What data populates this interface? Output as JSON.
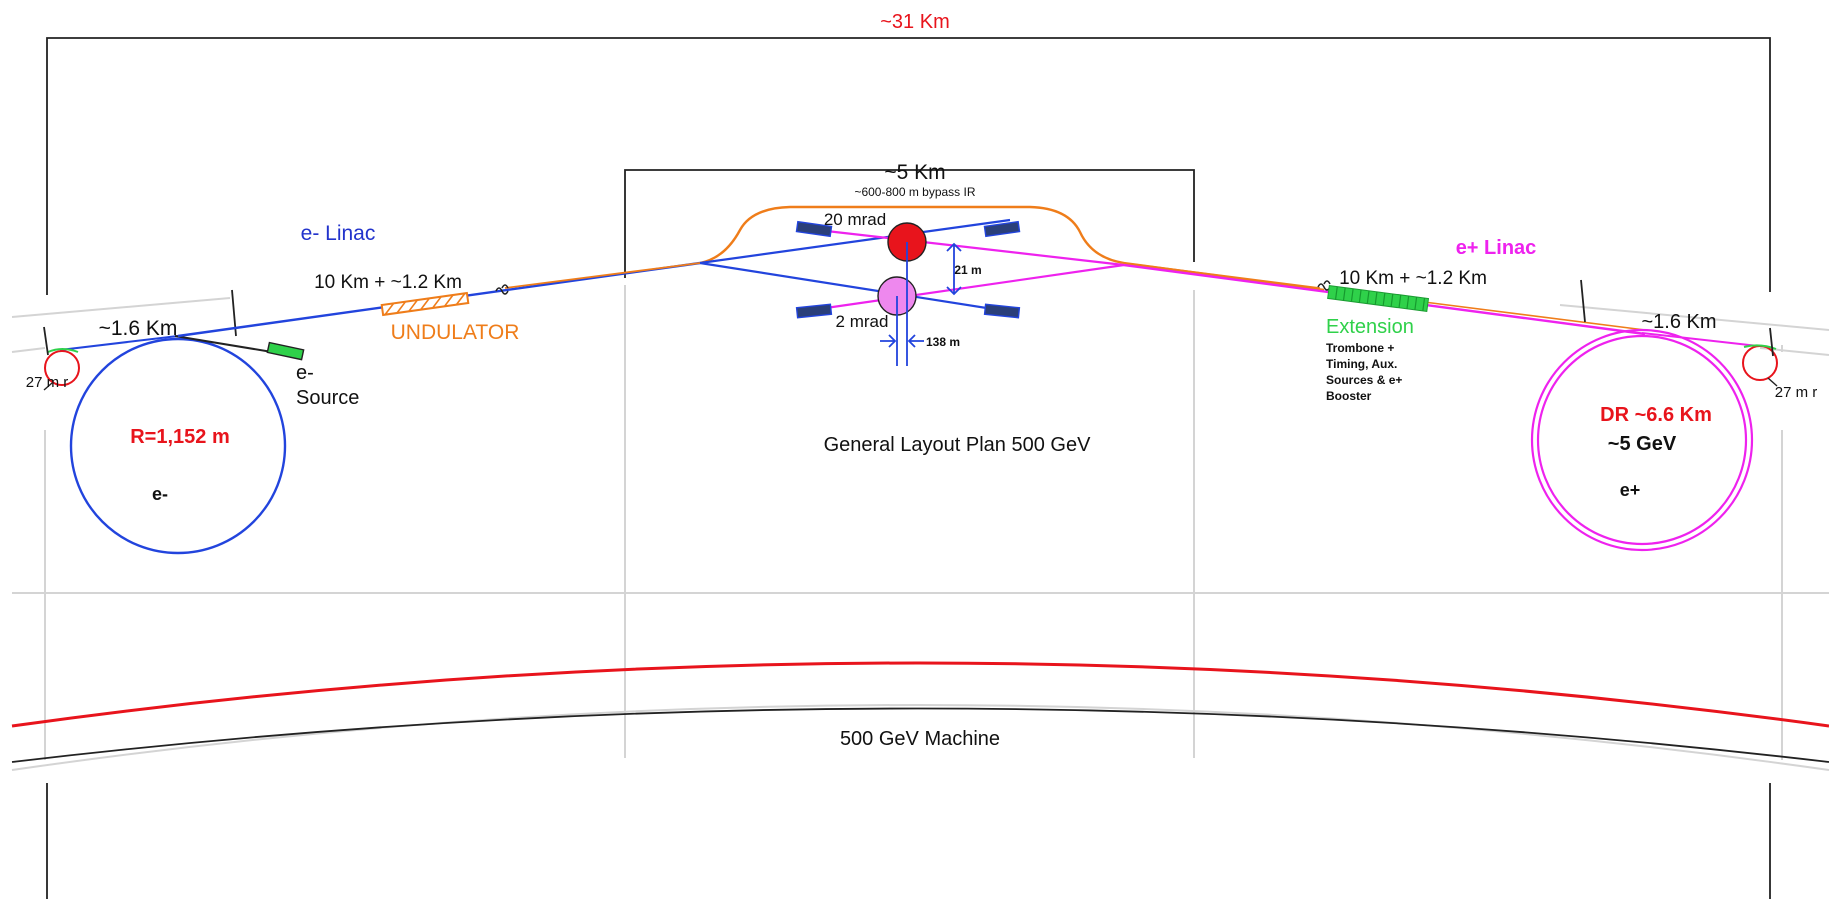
{
  "colors": {
    "electron_line": "#2244dd",
    "positron_line": "#ee22ee",
    "bypass_line": "#ef7d1a",
    "undulator": "#ef7d1a",
    "extension": "#2fd14a",
    "machine_arc": "#e8141c",
    "frame": "#222222",
    "guide_lines": "#d4d4d4",
    "magnet": "#2a3f7a",
    "ip_20mrad": "#e8141c",
    "ip_2mrad": "#ee88ee"
  },
  "labels": {
    "total_length": "~31 Km",
    "central_span": "~5 Km",
    "bypass_ir": "~600-800 m bypass IR",
    "crossing_20": "20 mrad",
    "crossing_2": "2 mrad",
    "ir_vertical": "21 m",
    "ir_horizontal": "138 m",
    "e_linac": "e- Linac",
    "e_linac_length": "10 Km + ~1.2 Km",
    "undulator": "UNDULATOR",
    "left_dr_span": "~1.6 Km",
    "left_turnaround": "27 m r",
    "e_source_line1": "e-",
    "e_source_line2": "Source",
    "left_dr_radius": "R=1,152 m",
    "left_dr_particle": "e-",
    "general_layout": "General Layout Plan 500 GeV",
    "p_linac": "e+ Linac",
    "p_linac_length": "10 Km + ~1.2 Km",
    "extension": "Extension",
    "extension_line1": "Trombone +",
    "extension_line2": "Timing, Aux.",
    "extension_line3": "Sources & e+",
    "extension_line4": "Booster",
    "right_dr_span": "~1.6 Km",
    "right_turnaround": "27 m r",
    "right_dr_size": "DR ~6.6 Km",
    "right_dr_energy": "~5 GeV",
    "right_dr_particle": "e+",
    "machine": "500 GeV Machine"
  }
}
